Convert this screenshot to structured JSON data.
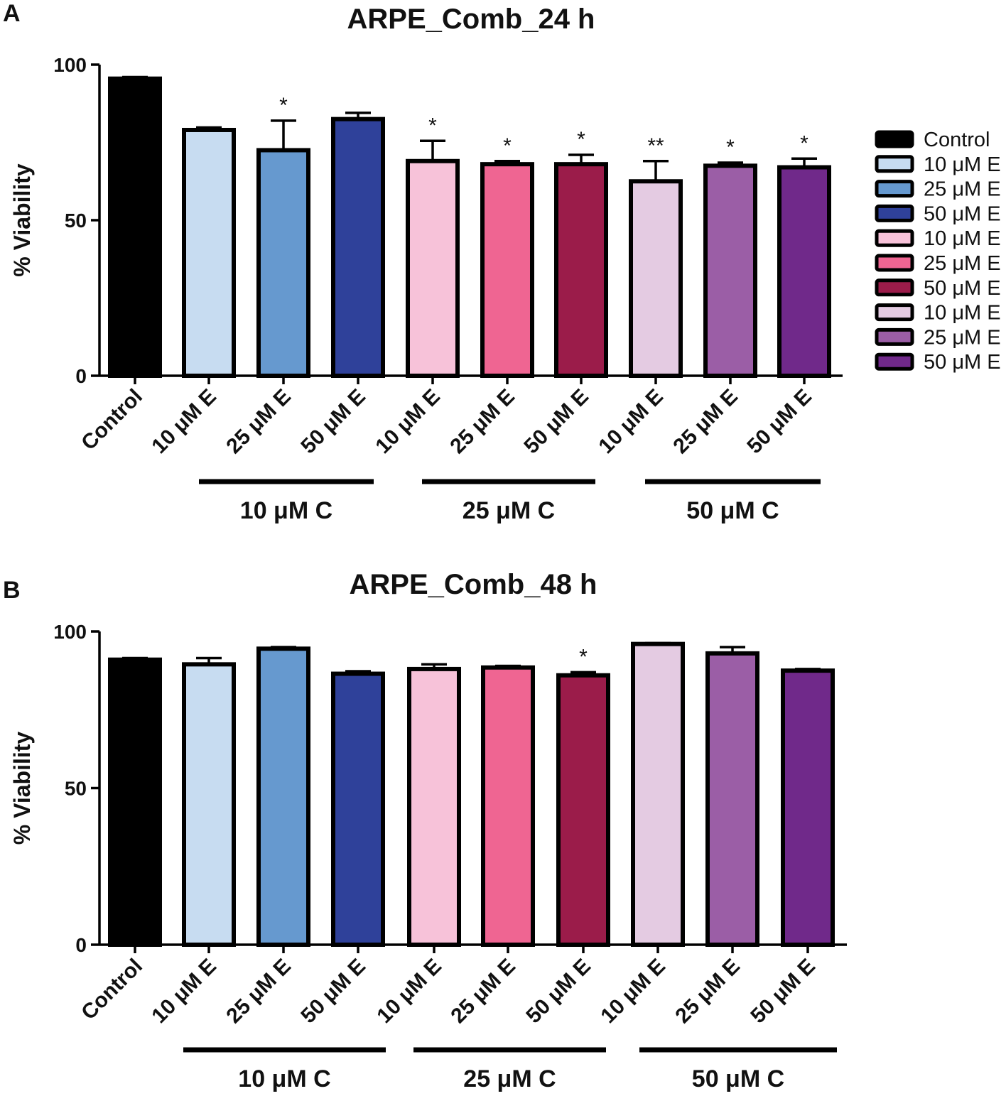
{
  "figure": {
    "colors": {
      "Control": "#000000",
      "C10_E10": "#c7dcf1",
      "C10_E25": "#6699cf",
      "C10_E50": "#2f419a",
      "C25_E10": "#f7c2d9",
      "C25_E25": "#ef6592",
      "C25_E50": "#9b1c4a",
      "C50_E10": "#e4cbe2",
      "C50_E25": "#9b5ea6",
      "C50_E50": "#70298a"
    },
    "legend": [
      {
        "label": "Control",
        "color_key": "Control"
      },
      {
        "label": "10 μM E",
        "color_key": "C10_E10"
      },
      {
        "label": "25 μM E",
        "color_key": "C10_E25"
      },
      {
        "label": "50 μM E",
        "color_key": "C10_E50"
      },
      {
        "label": "10 μM E",
        "color_key": "C25_E10"
      },
      {
        "label": "25 μM E",
        "color_key": "C25_E25"
      },
      {
        "label": "50 μM E",
        "color_key": "C25_E50"
      },
      {
        "label": "10 μM E",
        "color_key": "C50_E10"
      },
      {
        "label": "25 μM E",
        "color_key": "C50_E25"
      },
      {
        "label": "50 μM E",
        "color_key": "C50_E50"
      }
    ],
    "legend_placement": "right of panel A"
  },
  "chart_data": [
    {
      "panel": "A",
      "type": "bar",
      "title": "ARPE_Comb_24 h",
      "ylabel": "% Viability",
      "xlabel": "",
      "ylim": [
        0,
        100
      ],
      "yticks": [
        0,
        50,
        100
      ],
      "grid": false,
      "categories": [
        "Control",
        "10 μM E",
        "25 μM E",
        "50 μM E",
        "10 μM E",
        "25 μM E",
        "50 μM E",
        "10 μM E",
        "25 μM E",
        "50 μM E"
      ],
      "color_keys": [
        "Control",
        "C10_E10",
        "C10_E25",
        "C10_E50",
        "C25_E10",
        "C25_E25",
        "C25_E50",
        "C50_E10",
        "C50_E25",
        "C50_E50"
      ],
      "values": [
        95.5,
        79,
        72.5,
        82.5,
        69,
        68,
        68,
        62.5,
        67.5,
        67
      ],
      "errors": [
        0.5,
        0.8,
        9.5,
        2,
        6.5,
        1,
        3,
        6.5,
        1,
        2.8
      ],
      "significance": [
        "",
        "",
        "*",
        "",
        "*",
        "*",
        "*",
        "**",
        "*",
        "*"
      ],
      "groups": [
        {
          "label": "10 μM C",
          "start": 1,
          "end": 3
        },
        {
          "label": "25 μM C",
          "start": 4,
          "end": 6
        },
        {
          "label": "50 μM C",
          "start": 7,
          "end": 9
        }
      ]
    },
    {
      "panel": "B",
      "type": "bar",
      "title": "ARPE_Comb_48 h",
      "ylabel": "% Viability",
      "xlabel": "",
      "ylim": [
        0,
        100
      ],
      "yticks": [
        0,
        50,
        100
      ],
      "grid": false,
      "categories": [
        "Control",
        "10 μM E",
        "25 μM E",
        "50 μM E",
        "10 μM E",
        "25 μM E",
        "50 μM E",
        "10 μM E",
        "25 μM E",
        "50 μM E"
      ],
      "color_keys": [
        "Control",
        "C10_E10",
        "C10_E25",
        "C10_E50",
        "C25_E10",
        "C25_E25",
        "C25_E50",
        "C50_E10",
        "C50_E25",
        "C50_E50"
      ],
      "values": [
        91,
        89.5,
        94.5,
        86.5,
        88,
        88.5,
        86,
        96,
        93,
        87.5
      ],
      "errors": [
        0.5,
        2,
        0.5,
        0.8,
        1.5,
        0.5,
        1,
        0.3,
        2,
        0.5
      ],
      "significance": [
        "",
        "",
        "",
        "",
        "",
        "",
        "*",
        "",
        "",
        ""
      ],
      "groups": [
        {
          "label": "10 μM C",
          "start": 1,
          "end": 3
        },
        {
          "label": "25 μM C",
          "start": 4,
          "end": 6
        },
        {
          "label": "50 μM C",
          "start": 7,
          "end": 9
        }
      ]
    }
  ]
}
